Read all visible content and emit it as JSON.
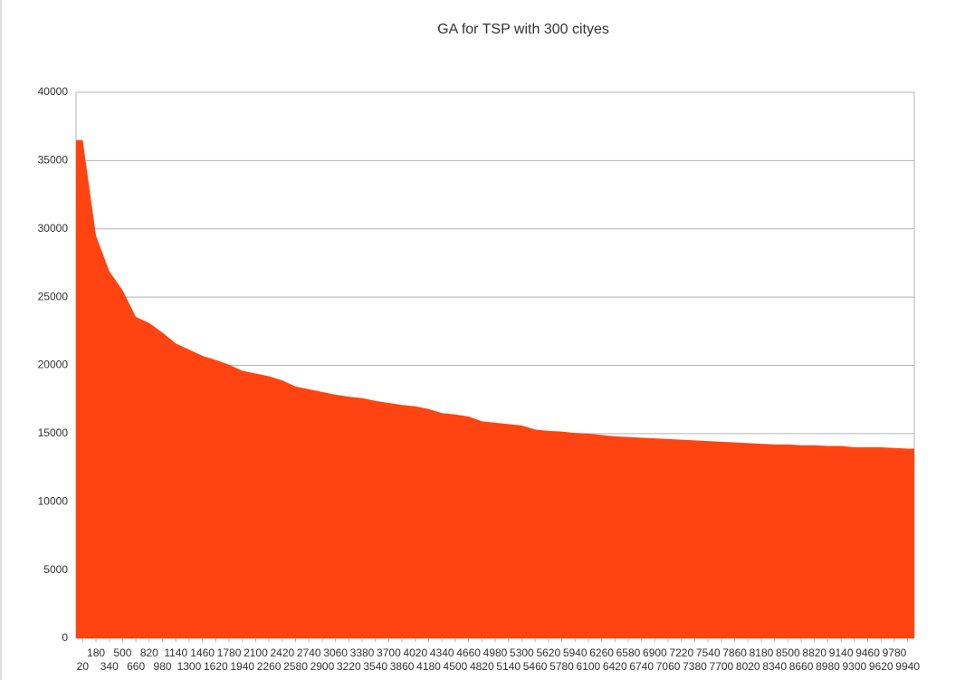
{
  "chart_data": {
    "type": "area",
    "title": "GA for TSP with 300 cityes",
    "categories": [
      20,
      180,
      340,
      500,
      660,
      820,
      980,
      1140,
      1300,
      1460,
      1620,
      1780,
      1940,
      2100,
      2260,
      2420,
      2580,
      2740,
      2900,
      3060,
      3220,
      3380,
      3540,
      3700,
      3860,
      4020,
      4180,
      4340,
      4500,
      4660,
      4820,
      4980,
      5140,
      5300,
      5460,
      5620,
      5780,
      5940,
      6100,
      6260,
      6420,
      6580,
      6740,
      6900,
      7060,
      7220,
      7380,
      7540,
      7700,
      7860,
      8020,
      8180,
      8340,
      8500,
      8660,
      8820,
      8980,
      9140,
      9300,
      9460,
      9620,
      9780,
      9940
    ],
    "values": [
      36500,
      29500,
      26900,
      25500,
      23550,
      23100,
      22400,
      21600,
      21150,
      20700,
      20400,
      20050,
      19600,
      19400,
      19200,
      18900,
      18450,
      18250,
      18050,
      17850,
      17700,
      17600,
      17400,
      17250,
      17100,
      17000,
      16800,
      16500,
      16400,
      16250,
      15900,
      15800,
      15700,
      15600,
      15300,
      15200,
      15150,
      15050,
      15000,
      14900,
      14800,
      14750,
      14700,
      14650,
      14600,
      14550,
      14500,
      14450,
      14400,
      14350,
      14300,
      14250,
      14200,
      14200,
      14150,
      14150,
      14100,
      14100,
      14000,
      14000,
      14000,
      13950,
      13900
    ],
    "color": "#ff4411",
    "ylim": [
      0,
      40000
    ],
    "yticks": [
      0,
      5000,
      10000,
      15000,
      20000,
      25000,
      30000,
      35000,
      40000
    ],
    "grid": true
  }
}
